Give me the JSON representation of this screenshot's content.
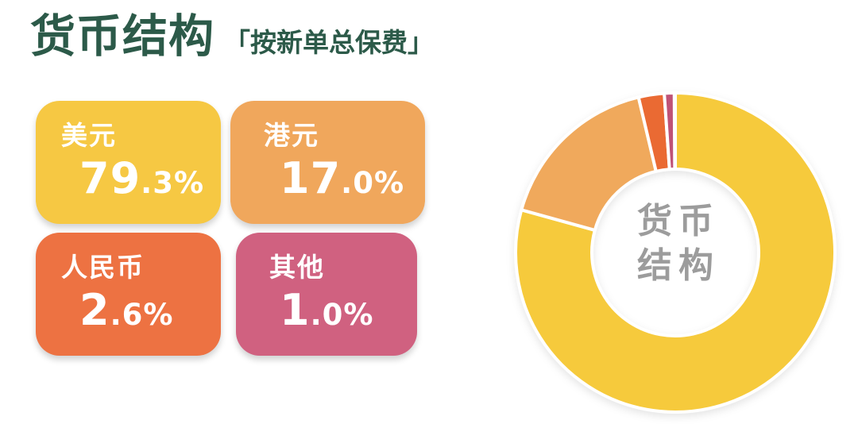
{
  "header": {
    "title": "货币结构",
    "subtitle": "「按新单总保费」"
  },
  "cards": [
    {
      "id": "usd",
      "label": "美元",
      "value": "79.3%",
      "color": "#F6C843"
    },
    {
      "id": "hkd",
      "label": "港元",
      "value": "17.0%",
      "color": "#F0A75C"
    },
    {
      "id": "cny",
      "label": "人民币",
      "value": "2.6%",
      "color": "#ED7242"
    },
    {
      "id": "other",
      "label": "其他",
      "value": "1.0%",
      "color": "#D06180"
    }
  ],
  "chart_data": {
    "type": "donut",
    "title": "货币结构",
    "subtitle": "按新单总保费",
    "center_label_lines": [
      "货币",
      "结构"
    ],
    "center_text_color": "#9C9C9C",
    "start_angle_deg": 0,
    "direction": "clockwise",
    "inner_outer_ratio": 0.52,
    "gap_stroke_color": "#FFFFFF",
    "legend_position": "none",
    "slices": [
      {
        "id": "usd",
        "label": "美元",
        "value_pct": 79.3,
        "color": "#F6CA3C"
      },
      {
        "id": "hkd",
        "label": "港元",
        "value_pct": 17.0,
        "color": "#F0A95C"
      },
      {
        "id": "cny",
        "label": "人民币",
        "value_pct": 2.6,
        "color": "#EA6A33"
      },
      {
        "id": "other",
        "label": "其他",
        "value_pct": 1.0,
        "color": "#BF5276"
      }
    ]
  },
  "colors": {
    "title_green": "#2C5A49",
    "background": "#FFFFFF"
  }
}
